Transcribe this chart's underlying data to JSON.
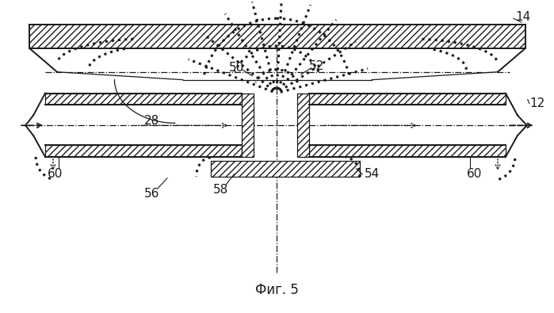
{
  "title": "Фиг. 5",
  "background_color": "#ffffff",
  "line_color": "#1a1a1a",
  "lw_main": 1.4,
  "lw_thin": 0.9
}
